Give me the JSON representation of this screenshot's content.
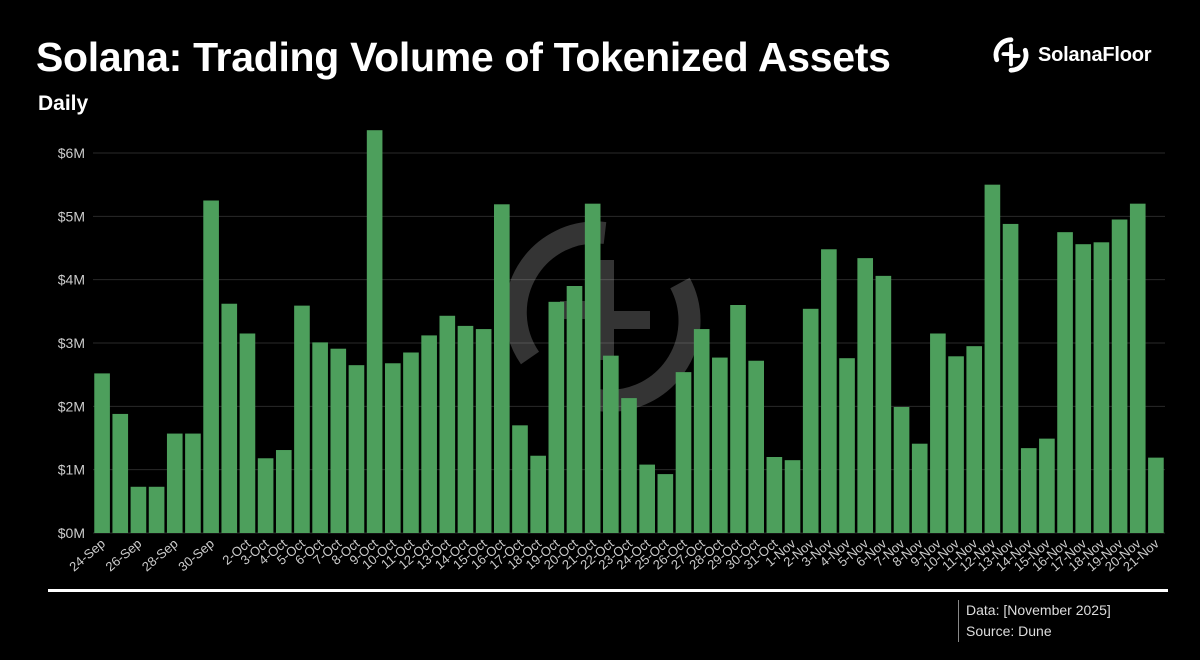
{
  "header": {
    "title": "Solana: Trading Volume of Tokenized Assets",
    "subtitle": "Daily",
    "brand": "SolanaFloor"
  },
  "footer": {
    "data_note": "Data: [November 2025]",
    "source_note": "Source: Dune"
  },
  "colors": {
    "background": "#000000",
    "bar": "#4d9f5c",
    "grid": "#2a2a2a",
    "text": "#ffffff",
    "axis_text": "#cccccc"
  },
  "icons": {
    "brand_logo": "solanafloor-logo-icon",
    "watermark": "solanafloor-watermark-icon"
  },
  "chart_data": {
    "type": "bar",
    "title": "Solana: Trading Volume of Tokenized Assets",
    "subtitle": "Daily",
    "ylim": [
      0,
      6
    ],
    "yticks": [
      0,
      1,
      2,
      3,
      4,
      5,
      6
    ],
    "ytick_labels": [
      "$0M",
      "$1M",
      "$2M",
      "$3M",
      "$4M",
      "$5M",
      "$6M"
    ],
    "grid": true,
    "legend": "none",
    "categories": [
      "24-Sep",
      "25-Sep",
      "26-Sep",
      "27-Sep",
      "28-Sep",
      "29-Sep",
      "30-Sep",
      "1-Oct",
      "2-Oct",
      "3-Oct",
      "4-Oct",
      "5-Oct",
      "6-Oct",
      "7-Oct",
      "8-Oct",
      "9-Oct",
      "10-Oct",
      "11-Oct",
      "12-Oct",
      "13-Oct",
      "14-Oct",
      "15-Oct",
      "16-Oct",
      "17-Oct",
      "18-Oct",
      "19-Oct",
      "20-Oct",
      "21-Oct",
      "22-Oct",
      "23-Oct",
      "24-Oct",
      "25-Oct",
      "26-Oct",
      "27-Oct",
      "28-Oct",
      "29-Oct",
      "30-Oct",
      "31-Oct",
      "1-Nov",
      "2-Nov",
      "3-Nov",
      "4-Nov",
      "5-Nov",
      "6-Nov",
      "7-Nov",
      "8-Nov",
      "9-Nov",
      "10-Nov",
      "11-Nov",
      "12-Nov",
      "13-Nov",
      "14-Nov",
      "15-Nov",
      "16-Nov",
      "17-Nov",
      "18-Nov",
      "19-Nov",
      "20-Nov",
      "21-Nov"
    ],
    "tick_labels": [
      "24-Sep",
      "",
      "26-Sep",
      "",
      "28-Sep",
      "",
      "30-Sep",
      "",
      "2-Oct",
      "3-Oct",
      "4-Oct",
      "5-Oct",
      "6-Oct",
      "7-Oct",
      "8-Oct",
      "9-Oct",
      "10-Oct",
      "11-Oct",
      "12-Oct",
      "13-Oct",
      "14-Oct",
      "15-Oct",
      "16-Oct",
      "17-Oct",
      "18-Oct",
      "19-Oct",
      "20-Oct",
      "21-Oct",
      "22-Oct",
      "23-Oct",
      "24-Oct",
      "25-Oct",
      "26-Oct",
      "27-Oct",
      "28-Oct",
      "29-Oct",
      "30-Oct",
      "31-Oct",
      "1-Nov",
      "2-Nov",
      "3-Nov",
      "4-Nov",
      "5-Nov",
      "6-Nov",
      "7-Nov",
      "8-Nov",
      "9-Nov",
      "10-Nov",
      "11-Nov",
      "12-Nov",
      "13-Nov",
      "14-Nov",
      "15-Nov",
      "16-Nov",
      "17-Nov",
      "18-Nov",
      "19-Nov",
      "20-Nov",
      "21-Nov"
    ],
    "values": [
      2.52,
      1.88,
      0.73,
      0.73,
      1.57,
      1.57,
      5.25,
      3.62,
      3.15,
      1.18,
      1.31,
      3.59,
      3.01,
      2.91,
      2.65,
      6.36,
      2.68,
      2.85,
      3.12,
      3.43,
      3.27,
      3.22,
      5.19,
      1.7,
      1.22,
      3.65,
      3.9,
      5.2,
      2.8,
      2.13,
      1.08,
      0.93,
      2.54,
      3.22,
      2.77,
      3.6,
      2.72,
      1.2,
      1.15,
      3.54,
      4.48,
      2.76,
      4.34,
      4.06,
      1.99,
      1.41,
      3.15,
      2.79,
      2.95,
      5.5,
      4.88,
      1.34,
      1.49,
      4.75,
      4.56,
      4.59,
      4.95,
      5.2,
      1.19
    ]
  }
}
